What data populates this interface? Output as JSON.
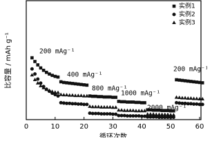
{
  "chart_data": {
    "type": "scatter",
    "x_label": "循环次数",
    "y_label": "比容量 / mAh g⁻¹",
    "annotations": [
      "200 mAg⁻¹",
      "400 mAg⁻¹",
      "800 mAg⁻¹",
      "1000 mAg⁻¹",
      "2000 mAg⁻¹",
      "200 mAg⁻¹"
    ],
    "x": [
      2,
      3,
      4,
      5,
      6,
      7,
      8,
      9,
      10,
      11,
      12,
      13,
      14,
      15,
      16,
      17,
      18,
      19,
      20,
      21,
      22,
      23,
      24,
      25,
      26,
      27,
      28,
      29,
      30,
      31,
      32,
      33,
      34,
      35,
      36,
      37,
      38,
      39,
      40,
      41,
      42,
      43,
      44,
      45,
      46,
      47,
      48,
      49,
      50,
      51,
      52,
      53,
      54,
      55,
      56,
      57,
      58,
      59,
      60,
      61
    ],
    "series": [
      {
        "name": "实例1",
        "color": "#111111",
        "marker": "square",
        "values": [
          183,
          172,
          162,
          153,
          146,
          140,
          135,
          131,
          128,
          126,
          112,
          110,
          109,
          108,
          107,
          106,
          105,
          104,
          103,
          102,
          70,
          69,
          69,
          68,
          68,
          67,
          67,
          67,
          66,
          66,
          54,
          53,
          53,
          52,
          52,
          52,
          51,
          51,
          50,
          50,
          29,
          29,
          28,
          28,
          28,
          27,
          27,
          27,
          26,
          26,
          118,
          117,
          116,
          115,
          114,
          113,
          112,
          111,
          110,
          109
        ]
      },
      {
        "name": "实例2",
        "color": "#111111",
        "marker": "circle",
        "values": [
          150,
          135,
          120,
          108,
          98,
          90,
          84,
          78,
          74,
          70,
          50,
          49,
          48,
          48,
          47,
          47,
          46,
          46,
          45,
          45,
          19,
          18,
          18,
          18,
          17,
          17,
          17,
          17,
          16,
          16,
          12,
          12,
          12,
          11,
          11,
          11,
          11,
          11,
          10,
          10,
          8,
          8,
          8,
          8,
          7,
          7,
          7,
          7,
          7,
          7,
          50,
          49,
          48,
          48,
          47,
          47,
          46,
          46,
          45,
          45
        ]
      },
      {
        "name": "实例3",
        "color": "#111111",
        "marker": "triangle",
        "values": [
          132,
          118,
          108,
          100,
          94,
          89,
          86,
          83,
          81,
          80,
          74,
          73,
          73,
          72,
          72,
          71,
          71,
          71,
          70,
          70,
          39,
          38,
          38,
          38,
          37,
          37,
          37,
          37,
          36,
          36,
          28,
          28,
          27,
          27,
          27,
          27,
          26,
          26,
          26,
          26,
          16,
          16,
          16,
          15,
          15,
          15,
          15,
          15,
          14,
          14,
          66,
          65,
          64,
          64,
          63,
          63,
          62,
          62,
          61,
          61
        ]
      }
    ],
    "xlim": [
      0,
      60
    ],
    "xticks": [
      0,
      10,
      20,
      30,
      40,
      50,
      60
    ],
    "ylim": [
      0,
      350
    ],
    "legend": "upper right"
  }
}
